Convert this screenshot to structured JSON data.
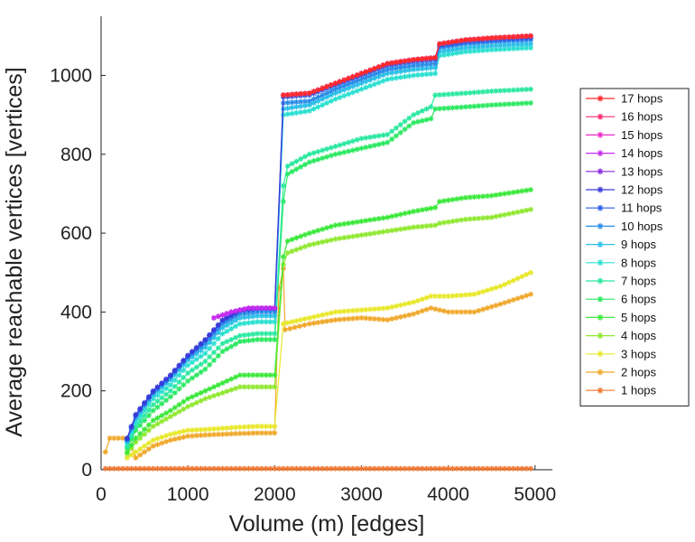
{
  "chart_data": {
    "type": "line",
    "title": "",
    "xlabel": "Volume (m) [edges]",
    "ylabel": "Average reachable vertices [vertices]",
    "xlim": [
      0,
      5200
    ],
    "ylim": [
      0,
      1150
    ],
    "xticks": [
      0,
      1000,
      2000,
      3000,
      4000,
      5000
    ],
    "yticks": [
      0,
      200,
      400,
      600,
      800,
      1000
    ],
    "grid": false,
    "legend_position": "right",
    "series": [
      {
        "name": "17 hops",
        "color": "#ff2a2a",
        "x": [
          2100,
          2400,
          2700,
          3000,
          3300,
          3600,
          3850,
          3900,
          4200,
          4500,
          4950
        ],
        "y": [
          950,
          955,
          980,
          1005,
          1030,
          1040,
          1045,
          1080,
          1090,
          1095,
          1100
        ]
      },
      {
        "name": "16 hops",
        "color": "#ff2a6e",
        "x": [
          2100,
          2400,
          2700,
          3000,
          3300,
          3600,
          3850,
          3900,
          4200,
          4500,
          4950
        ],
        "y": [
          950,
          955,
          980,
          1005,
          1030,
          1040,
          1045,
          1080,
          1090,
          1095,
          1100
        ]
      },
      {
        "name": "15 hops",
        "color": "#f02acc",
        "x": [
          2100,
          2400,
          2700,
          3000,
          3300,
          3600,
          3850,
          3900,
          4200,
          4500,
          4950
        ],
        "y": [
          950,
          955,
          980,
          1005,
          1030,
          1040,
          1045,
          1080,
          1090,
          1095,
          1100
        ]
      },
      {
        "name": "14 hops",
        "color": "#c82af0",
        "x": [
          1300,
          1500,
          1700,
          2000
        ],
        "y": [
          385,
          400,
          410,
          410
        ]
      },
      {
        "name": "13 hops",
        "color": "#8a2ae0",
        "x": [
          1300,
          1500,
          1700,
          2000
        ],
        "y": [
          385,
          400,
          410,
          410
        ]
      },
      {
        "name": "12 hops",
        "color": "#3a3ad8",
        "x": [
          300,
          400,
          600,
          800,
          1000,
          1200,
          1400,
          1600,
          1800,
          2000,
          2100,
          2400,
          2700,
          3000,
          3300,
          3600,
          3850,
          3900,
          4200,
          4500,
          4950
        ],
        "y": [
          80,
          140,
          200,
          240,
          290,
          330,
          380,
          405,
          410,
          410,
          950,
          955,
          980,
          1005,
          1030,
          1040,
          1045,
          1080,
          1090,
          1095,
          1100
        ]
      },
      {
        "name": "11 hops",
        "color": "#2a5ae8",
        "x": [
          300,
          400,
          600,
          800,
          1000,
          1200,
          1400,
          1600,
          1800,
          2000,
          2100,
          2400,
          2700,
          3000,
          3300,
          3600,
          3850,
          3900,
          4200,
          4500,
          4950
        ],
        "y": [
          78,
          138,
          198,
          238,
          288,
          328,
          378,
          403,
          408,
          408,
          945,
          950,
          975,
          1000,
          1025,
          1035,
          1040,
          1075,
          1085,
          1090,
          1095
        ]
      },
      {
        "name": "10 hops",
        "color": "#2a8ce8",
        "x": [
          300,
          400,
          600,
          800,
          1000,
          1200,
          1400,
          1600,
          1800,
          2000,
          2100,
          2400,
          2700,
          3000,
          3300,
          3600,
          3850,
          3900,
          4200,
          4500,
          4950
        ],
        "y": [
          75,
          135,
          195,
          235,
          285,
          320,
          370,
          395,
          400,
          400,
          930,
          935,
          965,
          990,
          1015,
          1025,
          1030,
          1070,
          1080,
          1085,
          1090
        ]
      },
      {
        "name": "9 hops",
        "color": "#2ac0e8",
        "x": [
          300,
          400,
          600,
          800,
          1000,
          1200,
          1400,
          1600,
          1800,
          2000,
          2100,
          2400,
          2700,
          3000,
          3300,
          3600,
          3850,
          3900,
          4200,
          4500,
          4950
        ],
        "y": [
          72,
          130,
          190,
          228,
          278,
          310,
          360,
          385,
          390,
          390,
          915,
          925,
          955,
          980,
          1005,
          1015,
          1020,
          1060,
          1070,
          1075,
          1080
        ]
      },
      {
        "name": "8 hops",
        "color": "#2ae0d0",
        "x": [
          300,
          400,
          600,
          800,
          1000,
          1200,
          1400,
          1600,
          1800,
          2000,
          2100,
          2400,
          2700,
          3000,
          3300,
          3600,
          3850,
          3900,
          4200,
          4500,
          4950
        ],
        "y": [
          68,
          120,
          180,
          215,
          265,
          295,
          345,
          370,
          375,
          375,
          900,
          910,
          940,
          965,
          990,
          1000,
          1005,
          1050,
          1060,
          1065,
          1070
        ]
      },
      {
        "name": "7 hops",
        "color": "#2ae8a0",
        "x": [
          300,
          400,
          600,
          800,
          1000,
          1200,
          1400,
          1600,
          1800,
          2000,
          2100,
          2150,
          2400,
          2700,
          3000,
          3300,
          3600,
          3800,
          3850,
          4200,
          4500,
          4950
        ],
        "y": [
          60,
          110,
          165,
          200,
          245,
          275,
          320,
          340,
          345,
          345,
          720,
          770,
          800,
          820,
          840,
          850,
          900,
          920,
          950,
          955,
          960,
          965
        ]
      },
      {
        "name": "6 hops",
        "color": "#2ae860",
        "x": [
          300,
          400,
          600,
          800,
          1000,
          1200,
          1400,
          1600,
          1800,
          2000,
          2100,
          2150,
          2400,
          2700,
          3000,
          3300,
          3600,
          3800,
          3850,
          4200,
          4500,
          4950
        ],
        "y": [
          55,
          100,
          150,
          185,
          225,
          255,
          300,
          325,
          330,
          330,
          680,
          750,
          780,
          800,
          815,
          830,
          880,
          890,
          915,
          920,
          925,
          930
        ]
      },
      {
        "name": "5 hops",
        "color": "#3ae83a",
        "x": [
          300,
          400,
          600,
          800,
          1000,
          1200,
          1400,
          1600,
          1800,
          2000,
          2100,
          2150,
          2400,
          2700,
          3000,
          3300,
          3600,
          3850,
          3900,
          4200,
          4500,
          4950
        ],
        "y": [
          45,
          80,
          125,
          150,
          180,
          200,
          220,
          240,
          240,
          240,
          540,
          580,
          600,
          620,
          630,
          640,
          655,
          665,
          680,
          690,
          695,
          710
        ]
      },
      {
        "name": "4 hops",
        "color": "#90e830",
        "x": [
          300,
          400,
          600,
          800,
          1000,
          1200,
          1400,
          1600,
          1800,
          2000,
          2100,
          2150,
          2400,
          2700,
          3000,
          3300,
          3600,
          3850,
          3900,
          4200,
          4500,
          4950
        ],
        "y": [
          40,
          70,
          110,
          135,
          160,
          180,
          195,
          210,
          210,
          210,
          520,
          550,
          570,
          585,
          595,
          605,
          615,
          620,
          625,
          635,
          640,
          660
        ]
      },
      {
        "name": "3 hops",
        "color": "#e8e82a",
        "x": [
          300,
          400,
          600,
          800,
          1000,
          1200,
          1400,
          1600,
          1800,
          2000,
          2100,
          2400,
          2700,
          3000,
          3300,
          3600,
          3800,
          4000,
          4300,
          4600,
          4950
        ],
        "y": [
          30,
          45,
          75,
          90,
          100,
          102,
          105,
          108,
          110,
          110,
          370,
          385,
          400,
          405,
          410,
          425,
          440,
          440,
          445,
          465,
          500
        ]
      },
      {
        "name": "2 hops",
        "color": "#f0a82a",
        "x": [
          50,
          100,
          300,
          400,
          600,
          800,
          1000,
          1200,
          1400,
          1600,
          1800,
          2000,
          2050,
          2100,
          2120,
          2400,
          2700,
          3000,
          3300,
          3600,
          3800,
          4000,
          4300,
          4600,
          4950
        ],
        "y": [
          45,
          80,
          80,
          30,
          60,
          75,
          85,
          88,
          90,
          92,
          93,
          93,
          460,
          510,
          355,
          370,
          380,
          385,
          380,
          395,
          410,
          400,
          400,
          420,
          445
        ]
      },
      {
        "name": "1 hops",
        "color": "#f07830",
        "x": [
          50,
          500,
          1000,
          1500,
          2000,
          2500,
          3000,
          3500,
          4000,
          4500,
          4950
        ],
        "y": [
          3,
          3,
          3,
          3,
          3,
          3,
          3,
          3,
          3,
          3,
          3
        ]
      }
    ]
  }
}
